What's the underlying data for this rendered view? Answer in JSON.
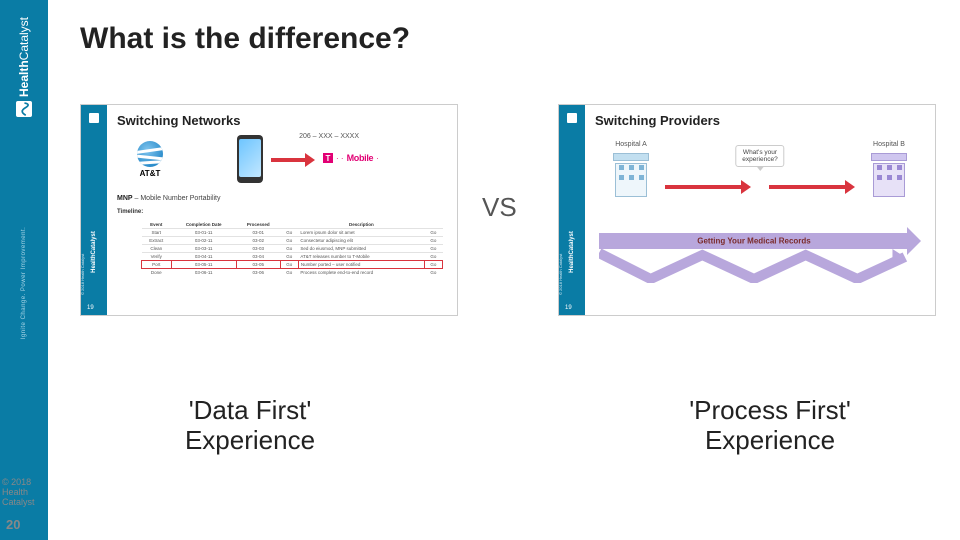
{
  "brand": {
    "name_strong": "Health",
    "name_light": "Catalyst",
    "tagline": "Ignite Change. Power Improvement."
  },
  "title": "What is the difference?",
  "vs": "VS",
  "left_thumb": {
    "title": "Switching Networks",
    "phone_number": "206 – XXX – XXXX",
    "att": "AT&T",
    "tmobile": "Mobile",
    "mnp_label": "MNP",
    "mnp_full": "– Mobile Number Portability",
    "timeline": "Timeline:",
    "page": "19",
    "cp": "© 2018 Health Catalyst",
    "table": {
      "headers": [
        "Event",
        "Completion Date",
        "Processed",
        "",
        "Description",
        ""
      ],
      "rows": [
        [
          "Start",
          "03-01-11",
          "03-01",
          "Go",
          "Lorem ipsum dolor sit amet",
          "Go"
        ],
        [
          "Extract",
          "03-02-11",
          "03-02",
          "Go",
          "Consectetur adipiscing elit",
          "Go"
        ],
        [
          "Clean",
          "03-03-11",
          "03-03",
          "Go",
          "Sed do eiusmod, MNP submitted",
          "Go"
        ],
        [
          "Verify",
          "03-04-11",
          "03-04",
          "Go",
          "AT&T releases number to T-Mobile",
          "Go"
        ],
        [
          "Port",
          "03-05-11",
          "03-05",
          "Go",
          "Number ported – user notified",
          "Go"
        ],
        [
          "Done",
          "03-06-11",
          "03-06",
          "Go",
          "Process complete end-to-end record",
          "Go"
        ]
      ],
      "highlight_row_index": 4
    }
  },
  "right_thumb": {
    "title": "Switching Providers",
    "hospital_a": "Hospital A",
    "hospital_b": "Hospital B",
    "bubble": "What's your\nexperience?",
    "records": "Getting Your Medical Records",
    "page": "19",
    "cp": "© 2018 Health Catalyst"
  },
  "captions": {
    "left_line1": "'Data First'",
    "left_line2": "Experience",
    "right_line1": "'Process First'",
    "right_line2": "Experience"
  },
  "footer": {
    "copyright_l1": "© 2018",
    "copyright_l2": "Health",
    "copyright_l3": "Catalyst",
    "page": "20"
  },
  "colors": {
    "brand": "#0a7ca5",
    "accent_red": "#d9343e",
    "tmobile": "#e20074",
    "purple": "#b8a7dc"
  }
}
